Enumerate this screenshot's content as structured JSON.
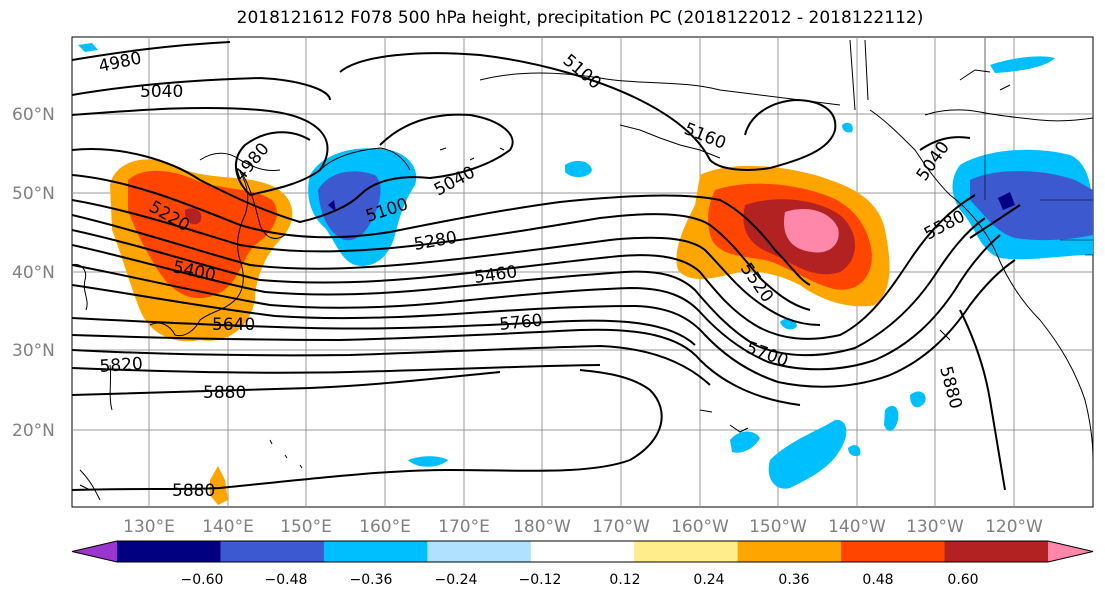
{
  "title": "2018121612 F078 500 hPa height, precipitation PC (2018122012 - 2018122112)",
  "map": {
    "lat_labels": [
      "60°N",
      "50°N",
      "40°N",
      "30°N",
      "20°N"
    ],
    "lon_labels": [
      "130°E",
      "140°E",
      "150°E",
      "160°E",
      "170°E",
      "180°W",
      "170°W",
      "160°W",
      "150°W",
      "140°W",
      "130°W",
      "120°W"
    ],
    "height_contour_labels": [
      "4980",
      "5040",
      "5100",
      "4980",
      "5160",
      "5220",
      "5100",
      "5040",
      "5280",
      "5400",
      "5460",
      "5520",
      "5580",
      "5640",
      "5760",
      "5700",
      "5820",
      "5880",
      "5880",
      "5880",
      "5040"
    ],
    "colorbar": {
      "ticks": [
        "−0.60",
        "−0.48",
        "−0.36",
        "−0.24",
        "−0.12",
        "0.12",
        "0.24",
        "0.36",
        "0.48",
        "0.60"
      ],
      "colors": [
        "#9a35cf",
        "#000080",
        "#3d59cf",
        "#00bfff",
        "#b0e2ff",
        "#ffffff",
        "#ffec8b",
        "#ffa500",
        "#ff4500",
        "#b22222",
        "#ff88aa"
      ]
    }
  }
}
